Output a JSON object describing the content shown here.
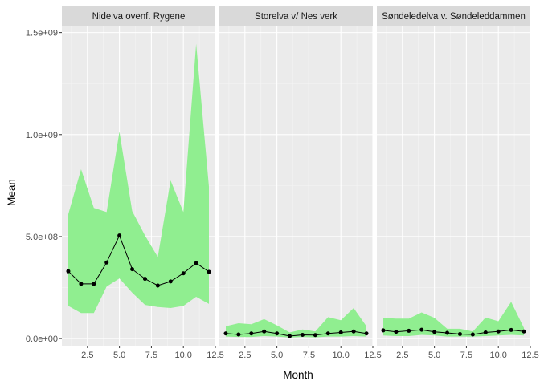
{
  "chart_data": {
    "type": "line",
    "xlabel": "Month",
    "ylabel": "Mean",
    "xlim": [
      0.5,
      12.5
    ],
    "ylim": [
      -35000000.0,
      1530000000.0
    ],
    "x_ticks": [
      {
        "value": 2.5,
        "label": "2.5"
      },
      {
        "value": 5.0,
        "label": "5.0"
      },
      {
        "value": 7.5,
        "label": "7.5"
      },
      {
        "value": 10.0,
        "label": "10.0"
      },
      {
        "value": 12.5,
        "label": "12.5"
      }
    ],
    "y_ticks": [
      {
        "value": 0,
        "label": "0.0e+00"
      },
      {
        "value": 500000000,
        "label": "5.0e+08"
      },
      {
        "value": 1000000000,
        "label": "1.0e+09"
      },
      {
        "value": 1500000000,
        "label": "1.5e+09"
      }
    ],
    "ribbon_color": "#90ee90",
    "line_color": "#000000",
    "panel_bg": "#ebebeb",
    "strip_bg": "#d9d9d9",
    "facets": [
      {
        "name": "Nidelva ovenf. Rygene",
        "x": [
          1,
          2,
          3,
          4,
          5,
          6,
          7,
          8,
          9,
          10,
          11,
          12
        ],
        "mean": [
          330000000,
          268000000,
          268000000,
          373000000,
          505000000,
          340000000,
          293000000,
          260000000,
          280000000,
          320000000,
          370000000,
          327000000
        ],
        "lower": [
          160000000,
          125000000,
          125000000,
          255000000,
          295000000,
          225000000,
          165000000,
          155000000,
          150000000,
          160000000,
          205000000,
          170000000
        ],
        "upper": [
          610000000,
          830000000,
          640000000,
          620000000,
          1015000000,
          625000000,
          505000000,
          400000000,
          775000000,
          620000000,
          1445000000,
          745000000
        ]
      },
      {
        "name": "Storelva v/ Nes verk",
        "x": [
          1,
          2,
          3,
          4,
          5,
          6,
          7,
          8,
          9,
          10,
          11,
          12
        ],
        "mean": [
          25000000,
          20000000,
          25000000,
          35000000,
          25000000,
          12000000,
          18000000,
          17000000,
          25000000,
          30000000,
          35000000,
          25000000
        ],
        "lower": [
          10000000,
          8000000,
          8000000,
          12000000,
          10000000,
          5000000,
          8000000,
          6000000,
          10000000,
          10000000,
          12000000,
          10000000
        ],
        "upper": [
          60000000,
          75000000,
          70000000,
          95000000,
          65000000,
          30000000,
          45000000,
          35000000,
          105000000,
          90000000,
          150000000,
          60000000
        ]
      },
      {
        "name": "Søndeledelva v. Søndeleddammen",
        "x": [
          1,
          2,
          3,
          4,
          5,
          6,
          7,
          8,
          9,
          10,
          11,
          12
        ],
        "mean": [
          40000000,
          33000000,
          38000000,
          43000000,
          33000000,
          28000000,
          22000000,
          20000000,
          30000000,
          35000000,
          42000000,
          35000000
        ],
        "lower": [
          15000000,
          12000000,
          12000000,
          18000000,
          15000000,
          10000000,
          10000000,
          10000000,
          12000000,
          15000000,
          18000000,
          15000000
        ],
        "upper": [
          102000000,
          98000000,
          98000000,
          128000000,
          102000000,
          48000000,
          48000000,
          35000000,
          103000000,
          85000000,
          180000000,
          52000000
        ]
      }
    ]
  }
}
